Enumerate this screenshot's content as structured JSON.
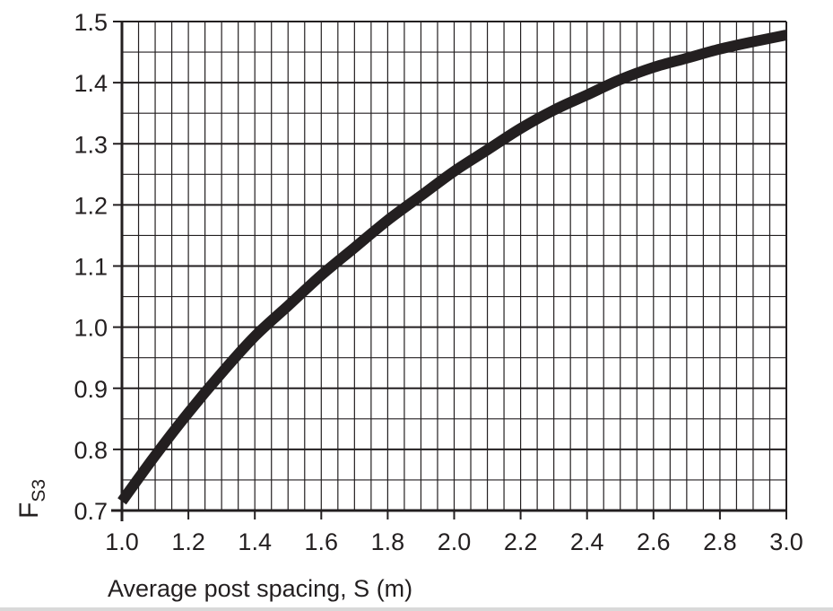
{
  "chart_data": {
    "type": "line",
    "title": "",
    "xlabel": "Average post spacing, S (m)",
    "ylabel": {
      "main": "F",
      "subscript": "S3"
    },
    "xlim": [
      1.0,
      3.0
    ],
    "ylim": [
      0.7,
      1.5
    ],
    "x_ticks": [
      "1.0",
      "1.2",
      "1.4",
      "1.6",
      "1.8",
      "2.0",
      "2.2",
      "2.4",
      "2.6",
      "2.8",
      "3.0"
    ],
    "y_ticks": [
      "0.7",
      "0.8",
      "0.9",
      "1.0",
      "1.1",
      "1.2",
      "1.3",
      "1.4",
      "1.5"
    ],
    "grid": {
      "x_minor_step": 0.05,
      "y_minor_step": 0.05
    },
    "series": [
      {
        "color": "#231f20",
        "x": [
          1.0,
          1.1,
          1.2,
          1.3,
          1.4,
          1.5,
          1.6,
          1.7,
          1.8,
          1.9,
          2.0,
          2.1,
          2.2,
          2.3,
          2.4,
          2.5,
          2.6,
          2.7,
          2.8,
          2.9,
          3.0
        ],
        "y": [
          0.715,
          0.79,
          0.86,
          0.925,
          0.985,
          1.035,
          1.085,
          1.13,
          1.175,
          1.215,
          1.255,
          1.29,
          1.325,
          1.355,
          1.38,
          1.405,
          1.425,
          1.44,
          1.455,
          1.467,
          1.478
        ]
      }
    ]
  }
}
